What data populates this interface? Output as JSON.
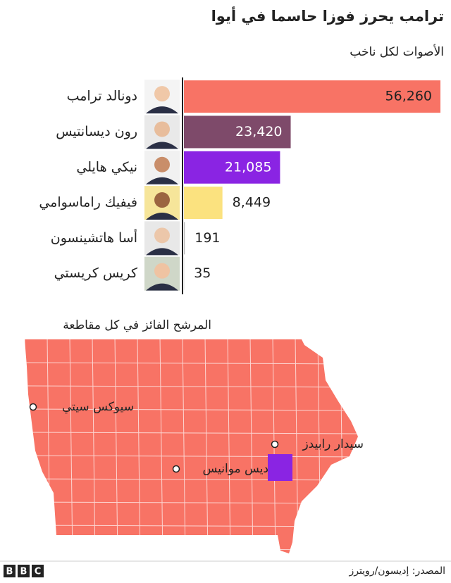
{
  "chart_data": {
    "type": "bar",
    "orientation": "horizontal",
    "title": "ترامب يحرز فوزا حاسما في أيوا",
    "subtitle": "الأصوات لكل ناخب",
    "categories": [
      "دونالد ترامب",
      "رون ديسانتيس",
      "نيكي هايلي",
      "فيفيك راماسوامي",
      "أسا هاتشينسون",
      "كريس كريستي"
    ],
    "values": [
      56260,
      23420,
      21085,
      8449,
      191,
      35
    ],
    "value_labels": [
      "56,260",
      "23,420",
      "21,085",
      "8,449",
      "191",
      "35"
    ],
    "colors": [
      "#f87365",
      "#7e4a6a",
      "#8a24e3",
      "#fbe27f",
      "#b9b9b9",
      "#b9b9b9"
    ]
  },
  "map": {
    "title": "المرشح الفائز في كل مقاطعة",
    "cities": [
      "سيوكس سيتي",
      "سيدار رابيدز",
      "ديس موانيس"
    ]
  },
  "footer": {
    "source": "المصدر: إديسون/رويترز",
    "logo": [
      "B",
      "B",
      "C"
    ]
  }
}
